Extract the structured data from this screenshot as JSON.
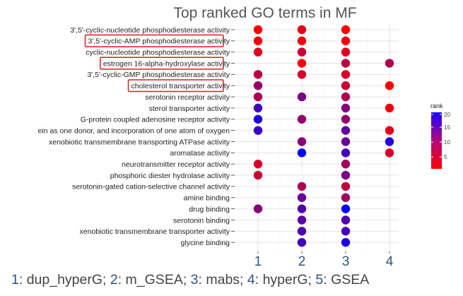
{
  "chart_data": {
    "type": "scatter",
    "title": "Top ranked GO terms in MF",
    "x_categories": [
      "1",
      "2",
      "3",
      "4"
    ],
    "terms": [
      "3',5'-cyclic-nucleotide phosphodiesterase activity",
      "3',5'-cyclic-AMP phosphodiesterase activity",
      "cyclic-nucleotide phosphodiesterase activity",
      "estrogen 16-alpha-hydroxylase activity",
      "3',5'-cyclic-GMP phosphodiesterase activity",
      "cholesterol transporter activity",
      "serotonin receptor activity",
      "sterol transporter activity",
      "G-protein coupled adenosine receptor activity",
      "ein as one donor, and incorporation of one atom of oxygen",
      "xenobiotic transmembrane transporting ATPase activity",
      "aromatase activity",
      "neurotransmitter receptor activity",
      "phosphoric diester hydrolase activity",
      "serotonin-gated cation-selective channel activity",
      "amine binding",
      "drug binding",
      "serotonin binding",
      "xenobiotic transmembrane transporter activity",
      "glycine binding"
    ],
    "highlighted_terms": [
      "3',5'-cyclic-AMP phosphodiesterase activity",
      "estrogen 16-alpha-hydroxylase activity",
      "cholesterol transporter activity"
    ],
    "points": [
      {
        "term": "3',5'-cyclic-nucleotide phosphodiesterase activity",
        "x": "1",
        "rank": 1
      },
      {
        "term": "3',5'-cyclic-nucleotide phosphodiesterase activity",
        "x": "2",
        "rank": 3
      },
      {
        "term": "3',5'-cyclic-nucleotide phosphodiesterase activity",
        "x": "3",
        "rank": 1
      },
      {
        "term": "3',5'-cyclic-AMP phosphodiesterase activity",
        "x": "1",
        "rank": 2
      },
      {
        "term": "3',5'-cyclic-AMP phosphodiesterase activity",
        "x": "2",
        "rank": 2
      },
      {
        "term": "3',5'-cyclic-AMP phosphodiesterase activity",
        "x": "3",
        "rank": 2
      },
      {
        "term": "cyclic-nucleotide phosphodiesterase activity",
        "x": "1",
        "rank": 3
      },
      {
        "term": "cyclic-nucleotide phosphodiesterase activity",
        "x": "2",
        "rank": 5
      },
      {
        "term": "cyclic-nucleotide phosphodiesterase activity",
        "x": "3",
        "rank": 3
      },
      {
        "term": "estrogen 16-alpha-hydroxylase activity",
        "x": "2",
        "rank": 1
      },
      {
        "term": "estrogen 16-alpha-hydroxylase activity",
        "x": "3",
        "rank": 6
      },
      {
        "term": "estrogen 16-alpha-hydroxylase activity",
        "x": "4",
        "rank": 7
      },
      {
        "term": "3',5'-cyclic-GMP phosphodiesterase activity",
        "x": "1",
        "rank": 6
      },
      {
        "term": "3',5'-cyclic-GMP phosphodiesterase activity",
        "x": "2",
        "rank": 4
      },
      {
        "term": "3',5'-cyclic-GMP phosphodiesterase activity",
        "x": "3",
        "rank": 4
      },
      {
        "term": "cholesterol transporter activity",
        "x": "1",
        "rank": 9
      },
      {
        "term": "cholesterol transporter activity",
        "x": "3",
        "rank": 5
      },
      {
        "term": "cholesterol transporter activity",
        "x": "4",
        "rank": 1
      },
      {
        "term": "serotonin receptor activity",
        "x": "1",
        "rank": 7
      },
      {
        "term": "serotonin receptor activity",
        "x": "2",
        "rank": 11
      },
      {
        "term": "serotonin receptor activity",
        "x": "3",
        "rank": 7
      },
      {
        "term": "sterol transporter activity",
        "x": "1",
        "rank": 15
      },
      {
        "term": "sterol transporter activity",
        "x": "3",
        "rank": 10
      },
      {
        "term": "sterol transporter activity",
        "x": "4",
        "rank": 2
      },
      {
        "term": "G-protein coupled adenosine receptor activity",
        "x": "1",
        "rank": 18
      },
      {
        "term": "G-protein coupled adenosine receptor activity",
        "x": "2",
        "rank": 9
      },
      {
        "term": "G-protein coupled adenosine receptor activity",
        "x": "3",
        "rank": 9
      },
      {
        "term": "ein as one donor, and incorporation of one atom of oxygen",
        "x": "1",
        "rank": 16
      },
      {
        "term": "ein as one donor, and incorporation of one atom of oxygen",
        "x": "3",
        "rank": 13
      },
      {
        "term": "ein as one donor, and incorporation of one atom of oxygen",
        "x": "4",
        "rank": 3
      },
      {
        "term": "xenobiotic transmembrane transporting ATPase activity",
        "x": "2",
        "rank": 10
      },
      {
        "term": "xenobiotic transmembrane transporting ATPase activity",
        "x": "3",
        "rank": 12
      },
      {
        "term": "xenobiotic transmembrane transporting ATPase activity",
        "x": "4",
        "rank": 17
      },
      {
        "term": "aromatase activity",
        "x": "2",
        "rank": 20
      },
      {
        "term": "aromatase activity",
        "x": "3",
        "rank": 15
      },
      {
        "term": "aromatase activity",
        "x": "4",
        "rank": 4
      },
      {
        "term": "neurotransmitter receptor activity",
        "x": "1",
        "rank": 4
      },
      {
        "term": "neurotransmitter receptor activity",
        "x": "3",
        "rank": 8
      },
      {
        "term": "phosphoric diester hydrolase activity",
        "x": "1",
        "rank": 5
      },
      {
        "term": "phosphoric diester hydrolase activity",
        "x": "3",
        "rank": 11
      },
      {
        "term": "serotonin-gated cation-selective channel activity",
        "x": "2",
        "rank": 7
      },
      {
        "term": "serotonin-gated cation-selective channel activity",
        "x": "3",
        "rank": 6
      },
      {
        "term": "amine binding",
        "x": "2",
        "rank": 12
      },
      {
        "term": "amine binding",
        "x": "3",
        "rank": 8
      },
      {
        "term": "drug binding",
        "x": "1",
        "rank": 10
      },
      {
        "term": "drug binding",
        "x": "2",
        "rank": 14
      },
      {
        "term": "drug binding",
        "x": "3",
        "rank": 20
      },
      {
        "term": "serotonin binding",
        "x": "2",
        "rank": 13
      },
      {
        "term": "serotonin binding",
        "x": "3",
        "rank": 14
      },
      {
        "term": "xenobiotic transmembrane transporter activity",
        "x": "2",
        "rank": 14
      },
      {
        "term": "xenobiotic transmembrane transporter activity",
        "x": "3",
        "rank": 15
      },
      {
        "term": "glycine binding",
        "x": "2",
        "rank": 15
      },
      {
        "term": "glycine binding",
        "x": "3",
        "rank": 18
      }
    ],
    "color_scale": {
      "low": "#ff0000",
      "high": "#0000ff",
      "range": [
        1,
        20
      ]
    },
    "legend": {
      "title": "rank",
      "ticks": [
        20,
        15,
        10,
        5
      ],
      "position": "right"
    },
    "highlight_color": "#d62020",
    "grid": true
  },
  "caption": [
    {
      "num": "1",
      "text": ": dup_hyperG; "
    },
    {
      "num": "2",
      "text": ": m_GSEA; "
    },
    {
      "num": "3",
      "text": ": mabs; "
    },
    {
      "num": "4",
      "text": ": hyperG; "
    },
    {
      "num": "5",
      "text": ": GSEA"
    }
  ]
}
